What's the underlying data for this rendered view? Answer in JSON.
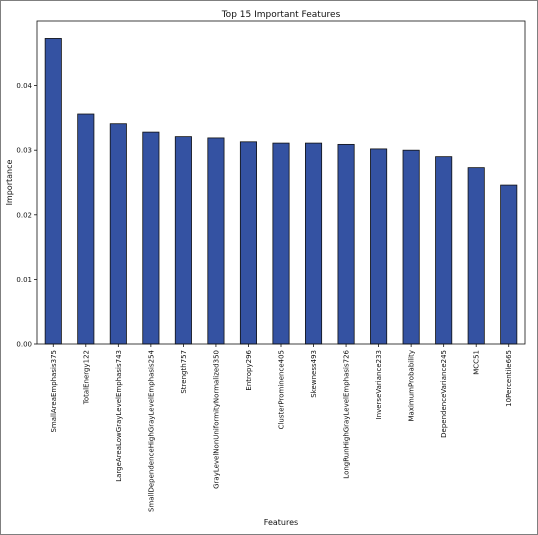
{
  "chart_data": {
    "type": "bar",
    "title": "Top 15 Important Features",
    "xlabel": "Features",
    "ylabel": "Importance",
    "categories": [
      "SmallAreaEmphasis375",
      "TotalEnergy122",
      "LargeAreaLowGrayLevelEmphasis743",
      "SmallDependenceHighGrayLevelEmphasis254",
      "Strength757",
      "GrayLevelNonUniformityNormalized350",
      "Entropy296",
      "ClusterProminence405",
      "Skewness493",
      "LongRunHighGrayLevelEmphasis726",
      "InverseVariance233",
      "MaximumProbability",
      "DependenceVariance245",
      "MCC51",
      "10Percentile665"
    ],
    "values": [
      0.0473,
      0.0356,
      0.0341,
      0.0328,
      0.0321,
      0.0319,
      0.0313,
      0.0311,
      0.0311,
      0.0309,
      0.0302,
      0.03,
      0.029,
      0.0273,
      0.0246
    ],
    "ylim": [
      0,
      0.05
    ],
    "yticks": [
      0.0,
      0.01,
      0.02,
      0.03,
      0.04
    ],
    "ytick_labels": [
      "0.00",
      "0.01",
      "0.02",
      "0.03",
      "0.04"
    ],
    "grid": false,
    "colors": {
      "bar": "#3452a2",
      "edge": "#111111"
    }
  }
}
